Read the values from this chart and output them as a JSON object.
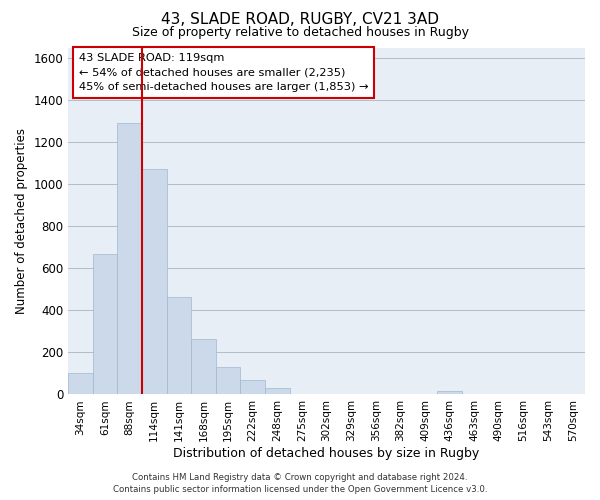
{
  "title": "43, SLADE ROAD, RUGBY, CV21 3AD",
  "subtitle": "Size of property relative to detached houses in Rugby",
  "xlabel": "Distribution of detached houses by size in Rugby",
  "ylabel": "Number of detached properties",
  "bar_labels": [
    "34sqm",
    "61sqm",
    "88sqm",
    "114sqm",
    "141sqm",
    "168sqm",
    "195sqm",
    "222sqm",
    "248sqm",
    "275sqm",
    "302sqm",
    "329sqm",
    "356sqm",
    "382sqm",
    "409sqm",
    "436sqm",
    "463sqm",
    "490sqm",
    "516sqm",
    "543sqm",
    "570sqm"
  ],
  "bar_values": [
    100,
    670,
    1290,
    1070,
    465,
    265,
    130,
    70,
    30,
    0,
    0,
    0,
    0,
    0,
    0,
    15,
    0,
    0,
    0,
    0,
    0
  ],
  "bar_color": "#ccd9ea",
  "bar_edgecolor": "#a0b8d0",
  "property_line_color": "#cc0000",
  "property_line_index": 3,
  "ylim": [
    0,
    1650
  ],
  "yticks": [
    0,
    200,
    400,
    600,
    800,
    1000,
    1200,
    1400,
    1600
  ],
  "annotation_title": "43 SLADE ROAD: 119sqm",
  "annotation_line1": "← 54% of detached houses are smaller (2,235)",
  "annotation_line2": "45% of semi-detached houses are larger (1,853) →",
  "annotation_box_facecolor": "#ffffff",
  "annotation_box_edgecolor": "#cc0000",
  "bg_color": "#e8eef5",
  "footer1": "Contains HM Land Registry data © Crown copyright and database right 2024.",
  "footer2": "Contains public sector information licensed under the Open Government Licence v3.0."
}
